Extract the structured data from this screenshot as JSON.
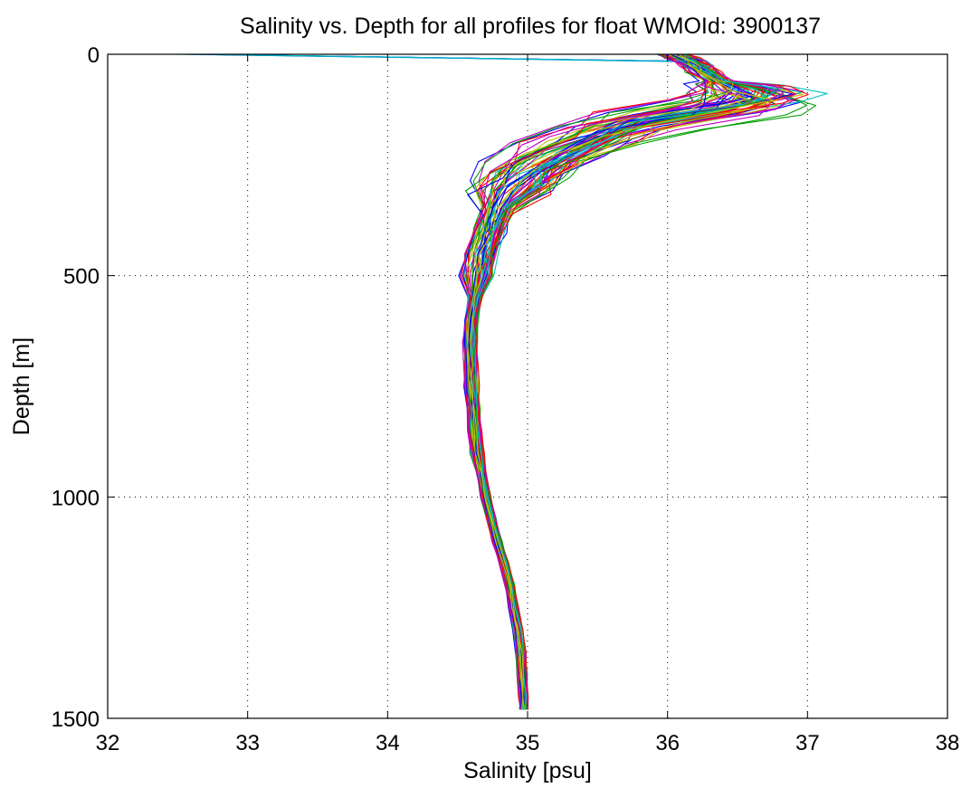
{
  "chart_data": {
    "type": "line",
    "title": "Salinity vs. Depth for all profiles for float WMOId: 3900137",
    "xlabel": "Salinity [psu]",
    "ylabel": "Depth [m]",
    "xlim": [
      32,
      38
    ],
    "ylim": [
      0,
      1500
    ],
    "y_reversed": true,
    "grid": true,
    "xticks": [
      32,
      33,
      34,
      35,
      36,
      37,
      38
    ],
    "yticks": [
      0,
      500,
      1000,
      1500
    ],
    "xtick_labels": [
      "32",
      "33",
      "34",
      "35",
      "36",
      "37",
      "38"
    ],
    "ytick_labels": [
      "0",
      "500",
      "1000",
      "1500"
    ],
    "series_colors": [
      "#0000ff",
      "#00a000",
      "#ff0000",
      "#00c0c0",
      "#c000c0",
      "#c0c000"
    ],
    "profile_count": 72,
    "typical_profile": {
      "depth": [
        0,
        8,
        15,
        25,
        40,
        60,
        80,
        100,
        120,
        150,
        180,
        220,
        260,
        300,
        350,
        400,
        450,
        500,
        550,
        600,
        650,
        700,
        750,
        800,
        850,
        900,
        950,
        1000,
        1050,
        1100,
        1150,
        1200,
        1250,
        1300,
        1350,
        1400,
        1450,
        1480
      ],
      "salinity": [
        36.05,
        36.1,
        36.15,
        36.2,
        36.25,
        36.35,
        36.5,
        36.6,
        36.4,
        35.85,
        35.5,
        35.2,
        35.0,
        34.88,
        34.78,
        34.72,
        34.67,
        34.64,
        34.62,
        34.6,
        34.59,
        34.59,
        34.6,
        34.61,
        34.62,
        34.64,
        34.67,
        34.7,
        34.74,
        34.78,
        34.83,
        34.87,
        34.9,
        34.93,
        34.95,
        34.96,
        34.97,
        34.97
      ]
    },
    "surface_outliers_min_salinity": 32.45
  }
}
